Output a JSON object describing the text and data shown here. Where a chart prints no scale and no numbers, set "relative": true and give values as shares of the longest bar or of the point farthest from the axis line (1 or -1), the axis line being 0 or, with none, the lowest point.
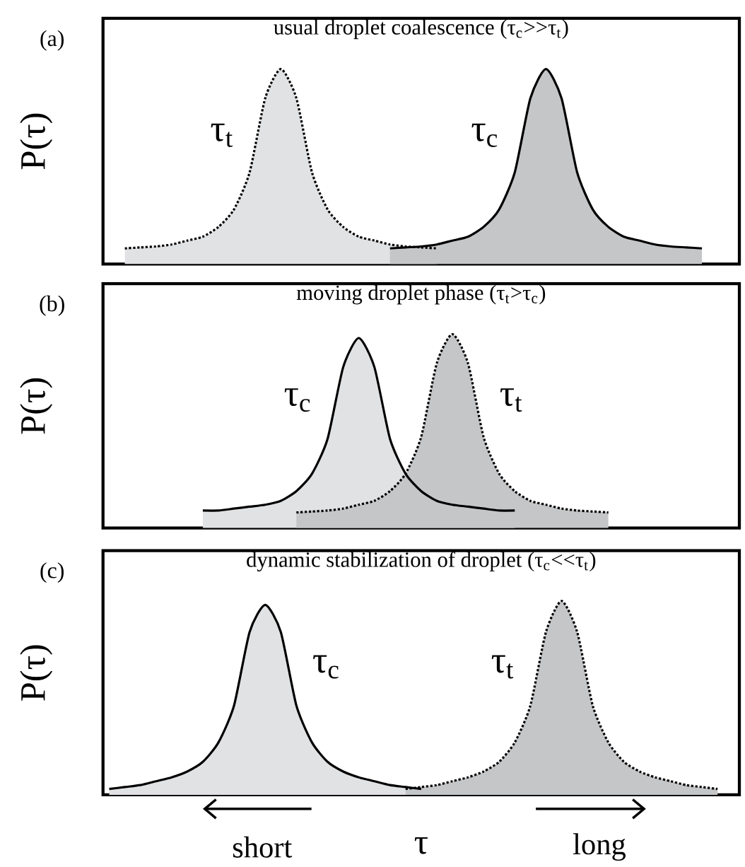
{
  "chart_data": [
    {
      "type": "area",
      "relative": true,
      "title": "usual droplet coalescence (τ$_{c}$>>τ$_{t}$)",
      "ylabel": "P(τ)",
      "annotations": [
        "(a)"
      ],
      "categories": [
        null,
        null,
        null,
        null,
        null,
        null,
        null,
        null,
        null,
        null,
        null,
        null,
        null,
        null,
        null,
        null,
        null,
        null,
        null,
        null,
        null,
        null,
        null,
        null,
        null,
        null,
        null,
        null,
        null,
        null,
        null,
        null,
        null,
        null,
        null,
        null,
        null,
        null,
        null,
        null,
        null
      ],
      "series": [
        {
          "name": "τ$_{t}$",
          "color": "#e1e2e4",
          "line_style": "dotted",
          "values": [
            null,
            0.08,
            0.085,
            0.09,
            0.1,
            0.12,
            0.14,
            0.19,
            0.28,
            0.47,
            0.85,
            1.0,
            0.85,
            0.47,
            0.28,
            0.19,
            0.14,
            0.12,
            0.1,
            0.09,
            0.085,
            0.08,
            null,
            null,
            null,
            null,
            null,
            null,
            null,
            null,
            null,
            null,
            null,
            null,
            null,
            null,
            null,
            null,
            null,
            null,
            null
          ]
        },
        {
          "name": "τ$_{c}$",
          "color": "#c5c6c8",
          "line_style": "solid",
          "values": [
            null,
            null,
            null,
            null,
            null,
            null,
            null,
            null,
            null,
            null,
            null,
            null,
            null,
            null,
            null,
            null,
            null,
            null,
            0.08,
            0.085,
            0.09,
            0.1,
            0.12,
            0.14,
            0.19,
            0.28,
            0.47,
            0.85,
            1.0,
            0.85,
            0.47,
            0.28,
            0.19,
            0.14,
            0.12,
            0.1,
            0.09,
            0.085,
            0.08,
            null,
            null
          ]
        }
      ]
    },
    {
      "type": "area",
      "relative": true,
      "title": "moving droplet phase (τ$_{t}$>τ$_{c}$)",
      "ylabel": "P(τ)",
      "annotations": [
        "(b)"
      ],
      "categories": [
        null,
        null,
        null,
        null,
        null,
        null,
        null,
        null,
        null,
        null,
        null,
        null,
        null,
        null,
        null,
        null,
        null,
        null,
        null,
        null,
        null,
        null,
        null,
        null,
        null,
        null,
        null,
        null,
        null,
        null,
        null,
        null,
        null,
        null,
        null,
        null,
        null,
        null,
        null,
        null,
        null
      ],
      "series": [
        {
          "name": "τ$_{c}$",
          "color": "#e1e2e4",
          "line_style": "solid",
          "values": [
            null,
            null,
            null,
            null,
            null,
            null,
            0.09,
            0.09,
            0.1,
            0.11,
            0.12,
            0.14,
            0.19,
            0.28,
            0.46,
            0.83,
            0.98,
            0.83,
            0.46,
            0.28,
            0.19,
            0.14,
            0.12,
            0.11,
            0.1,
            0.09,
            0.09,
            null,
            null,
            null,
            null,
            null,
            null,
            null,
            null,
            null,
            null,
            null,
            null,
            null,
            null
          ]
        },
        {
          "name": "τ$_{t}$",
          "color": "#c5c6c8",
          "line_style": "dotted",
          "values": [
            null,
            null,
            null,
            null,
            null,
            null,
            null,
            null,
            null,
            null,
            null,
            null,
            0.08,
            0.085,
            0.09,
            0.1,
            0.12,
            0.14,
            0.19,
            0.28,
            0.47,
            0.85,
            1.0,
            0.85,
            0.47,
            0.28,
            0.19,
            0.14,
            0.12,
            0.1,
            0.09,
            0.085,
            0.08,
            null,
            null,
            null,
            null,
            null,
            null,
            null,
            null
          ]
        }
      ]
    },
    {
      "type": "area",
      "relative": true,
      "title": "dynamic stabilization of droplet (τ$_{c}$<<τ$_{t}$)",
      "ylabel": "P(τ)",
      "xlabel": "τ",
      "annotations": [
        "(c)",
        "short",
        "long"
      ],
      "categories": [
        null,
        null,
        null,
        null,
        null,
        null,
        null,
        null,
        null,
        null,
        null,
        null,
        null,
        null,
        null,
        null,
        null,
        null,
        null,
        null,
        null,
        null,
        null,
        null,
        null,
        null,
        null,
        null,
        null,
        null,
        null,
        null,
        null,
        null,
        null,
        null,
        null,
        null,
        null,
        null,
        null
      ],
      "series": [
        {
          "name": "τ$_{c}$",
          "color": "#e1e2e4",
          "line_style": "solid",
          "values": [
            0.03,
            0.04,
            0.05,
            0.07,
            0.09,
            0.12,
            0.17,
            0.27,
            0.46,
            0.84,
            0.98,
            0.84,
            0.46,
            0.27,
            0.17,
            0.12,
            0.09,
            0.07,
            0.05,
            0.04,
            0.03,
            null,
            null,
            null,
            null,
            null,
            null,
            null,
            null,
            null,
            null,
            null,
            null,
            null,
            null,
            null,
            null,
            null,
            null,
            null,
            null
          ]
        },
        {
          "name": "τ$_{t}$",
          "color": "#c5c6c8",
          "line_style": "dotted",
          "values": [
            null,
            null,
            null,
            null,
            null,
            null,
            null,
            null,
            null,
            null,
            null,
            null,
            null,
            null,
            null,
            null,
            null,
            null,
            null,
            0.03,
            0.04,
            0.05,
            0.07,
            0.09,
            0.12,
            0.17,
            0.27,
            0.46,
            0.84,
            1.0,
            0.84,
            0.46,
            0.27,
            0.17,
            0.12,
            0.09,
            0.07,
            0.05,
            0.04,
            0.03,
            null
          ]
        }
      ]
    }
  ]
}
